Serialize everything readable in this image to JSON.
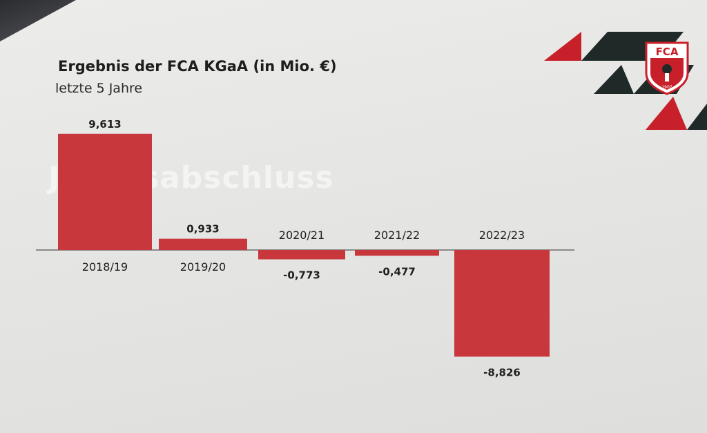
{
  "chart_data": {
    "type": "bar",
    "title": "Ergebnis der FCA KGaA (in Mio. €)",
    "subtitle": "letzte 5 Jahre",
    "categories": [
      "2018/19",
      "2019/20",
      "2020/21",
      "2021/22",
      "2022/23"
    ],
    "values": [
      9.613,
      0.933,
      -0.773,
      -0.477,
      -8.826
    ],
    "value_labels": [
      "9,613",
      "0,933",
      "-0,773",
      "-0,477",
      "-8,826"
    ],
    "ylim": [
      -10,
      10
    ],
    "grid": false,
    "bar_color": "#c7373b"
  },
  "watermark": "Jahresabschluss",
  "logo": {
    "text": "FCA",
    "year": "1907",
    "colors": {
      "red": "#c8202b",
      "dark": "#1f2a28",
      "white": "#ffffff"
    }
  }
}
